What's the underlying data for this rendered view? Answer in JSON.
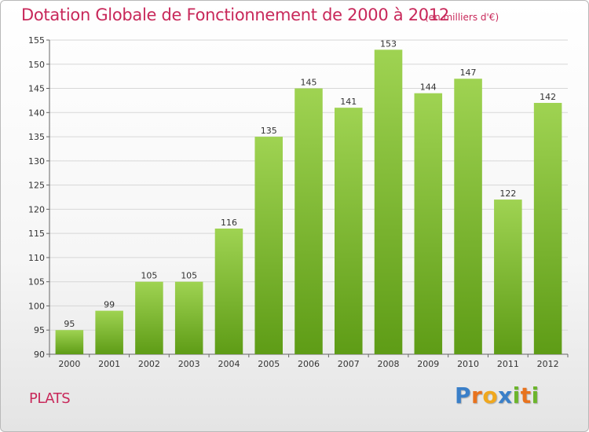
{
  "title": "Dotation Globale de Fonctionnement de 2000 à 2012",
  "subtitle": "(en milliers d'€)",
  "commune": "PLATS",
  "logo": {
    "letters": [
      "P",
      "r",
      "o",
      "x",
      "i",
      "t",
      "i"
    ],
    "colors": [
      "#3a7fc8",
      "#e8731e",
      "#f0a81e",
      "#3a7fc8",
      "#6cb52c",
      "#e8731e",
      "#6cb52c"
    ]
  },
  "colors": {
    "title": "#c8285a",
    "bar_top": "#9fd352",
    "bar_bottom": "#5e9c16",
    "grid": "#d7d7d7"
  },
  "chart_data": {
    "type": "bar",
    "categories": [
      "2000",
      "2001",
      "2002",
      "2003",
      "2004",
      "2005",
      "2006",
      "2007",
      "2008",
      "2009",
      "2010",
      "2011",
      "2012"
    ],
    "values": [
      95,
      99,
      105,
      105,
      116,
      135,
      145,
      141,
      153,
      144,
      147,
      122,
      142
    ],
    "ylim": [
      90,
      155
    ],
    "yticks": [
      90,
      95,
      100,
      105,
      110,
      115,
      120,
      125,
      130,
      135,
      140,
      145,
      150,
      155
    ],
    "grid": true,
    "data_labels": true
  }
}
